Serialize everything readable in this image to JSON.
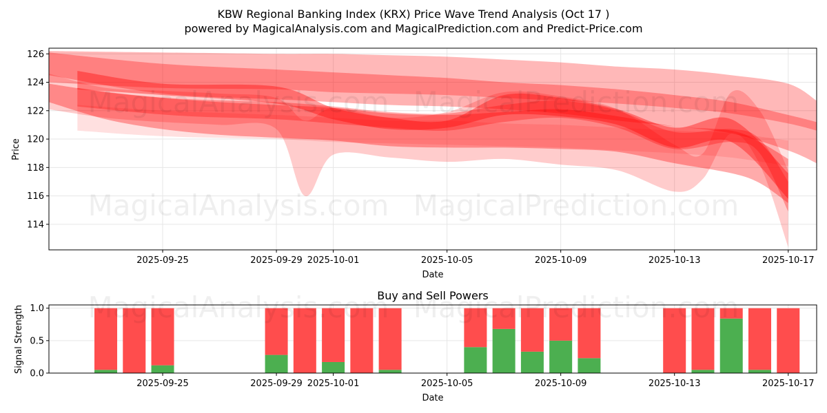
{
  "header": {
    "title": "KBW Regional Banking Index (KRX) Price Wave Trend Analysis (Oct 17 )",
    "subtitle": "powered by MagicalAnalysis.com and MagicalPrediction.com and Predict-Price.com"
  },
  "watermarks": [
    "MagicalAnalysis.com",
    "MagicalPrediction.com"
  ],
  "colors": {
    "wave": "#ff0000",
    "buy": "#4caf50",
    "sell": "#ff4d4d",
    "grid": "#e6e6e6"
  },
  "chart_data": [
    {
      "type": "area",
      "name": "price-wave-chart",
      "xlabel": "Date",
      "ylabel": "Price",
      "x_tick_labels": [
        "2025-09-25",
        "2025-09-29",
        "2025-10-01",
        "2025-10-05",
        "2025-10-09",
        "2025-10-13",
        "2025-10-17"
      ],
      "x_tick_dates": [
        "2025-09-25",
        "2025-09-29",
        "2025-10-01",
        "2025-10-05",
        "2025-10-09",
        "2025-10-13",
        "2025-10-17"
      ],
      "xlim": [
        "2025-09-21",
        "2025-10-18"
      ],
      "ylim": [
        112.2,
        126.4
      ],
      "y_ticks": [
        114,
        116,
        118,
        120,
        122,
        124,
        126
      ],
      "grid": true,
      "bands": [
        {
          "dates": [
            "2025-09-21",
            "2025-09-25",
            "2025-09-29",
            "2025-10-01",
            "2025-10-03",
            "2025-10-05",
            "2025-10-07",
            "2025-10-09",
            "2025-10-11",
            "2025-10-13",
            "2025-10-15",
            "2025-10-17",
            "2025-10-18"
          ],
          "upper": [
            126.2,
            126.1,
            126.0,
            126.0,
            125.9,
            125.8,
            125.6,
            125.4,
            125.1,
            124.9,
            124.5,
            123.9,
            122.7
          ],
          "lower": [
            124.0,
            123.6,
            123.5,
            123.3,
            123.2,
            123.1,
            122.9,
            122.7,
            122.5,
            122.2,
            121.8,
            121.1,
            120.6
          ],
          "opacity": 0.28
        },
        {
          "dates": [
            "2025-09-21",
            "2025-09-25",
            "2025-09-29",
            "2025-10-01",
            "2025-10-03",
            "2025-10-05",
            "2025-10-07",
            "2025-10-09",
            "2025-10-11",
            "2025-10-13",
            "2025-10-15",
            "2025-10-17",
            "2025-10-18"
          ],
          "upper": [
            126.1,
            125.3,
            124.9,
            124.7,
            124.5,
            124.3,
            124.0,
            123.8,
            123.5,
            123.1,
            122.6,
            121.7,
            121.2
          ],
          "lower": [
            124.5,
            123.2,
            122.8,
            122.6,
            122.4,
            122.3,
            122.1,
            121.8,
            121.3,
            120.9,
            120.4,
            119.2,
            118.3
          ],
          "opacity": 0.3
        },
        {
          "dates": [
            "2025-09-21",
            "2025-09-23",
            "2025-09-25",
            "2025-09-27",
            "2025-09-29",
            "2025-10-01",
            "2025-10-03",
            "2025-10-05",
            "2025-10-07",
            "2025-10-09",
            "2025-10-11",
            "2025-10-13",
            "2025-10-15",
            "2025-10-16",
            "2025-10-17"
          ],
          "upper": [
            123.9,
            123.3,
            122.9,
            122.6,
            122.4,
            122.2,
            121.8,
            121.7,
            121.9,
            122.1,
            121.6,
            120.9,
            120.6,
            119.8,
            118.6
          ],
          "lower": [
            122.6,
            121.4,
            120.7,
            120.3,
            120.1,
            119.9,
            119.5,
            119.4,
            119.4,
            119.3,
            119.1,
            118.3,
            117.6,
            116.9,
            115.5
          ],
          "opacity": 0.33
        },
        {
          "dates": [
            "2025-09-21",
            "2025-09-23",
            "2025-09-25",
            "2025-09-27",
            "2025-09-29",
            "2025-09-30",
            "2025-10-01",
            "2025-10-03",
            "2025-10-05",
            "2025-10-07",
            "2025-10-09",
            "2025-10-11",
            "2025-10-13",
            "2025-10-14",
            "2025-10-15",
            "2025-10-16",
            "2025-10-17"
          ],
          "upper": [
            124.6,
            123.6,
            123.4,
            123.2,
            122.9,
            121.3,
            122.2,
            121.5,
            121.9,
            123.3,
            123.0,
            122.1,
            119.6,
            119.0,
            123.3,
            122.0,
            117.8
          ],
          "lower": [
            122.1,
            121.5,
            121.2,
            121.0,
            120.7,
            116.0,
            118.9,
            118.7,
            118.4,
            118.6,
            118.2,
            117.8,
            116.3,
            117.2,
            120.4,
            118.2,
            112.4
          ],
          "opacity": 0.2
        },
        {
          "dates": [
            "2025-09-22",
            "2025-09-25",
            "2025-09-29",
            "2025-10-01",
            "2025-10-03",
            "2025-10-05",
            "2025-10-07",
            "2025-10-09",
            "2025-10-11",
            "2025-10-13",
            "2025-10-15",
            "2025-10-17"
          ],
          "upper": [
            124.8,
            123.9,
            123.7,
            122.2,
            121.5,
            121.3,
            123.1,
            122.9,
            122.1,
            120.8,
            121.4,
            117.6
          ],
          "lower": [
            123.5,
            123.1,
            122.5,
            121.4,
            120.7,
            120.8,
            121.7,
            121.6,
            121.0,
            119.4,
            119.8,
            115.8
          ],
          "opacity": 0.38
        },
        {
          "dates": [
            "2025-09-22",
            "2025-09-25",
            "2025-09-29",
            "2025-10-01",
            "2025-10-03",
            "2025-10-05",
            "2025-10-07",
            "2025-10-09",
            "2025-10-11",
            "2025-10-13",
            "2025-10-15",
            "2025-10-17"
          ],
          "upper": [
            122.4,
            122.0,
            121.7,
            121.5,
            121.3,
            121.3,
            121.1,
            121.0,
            120.8,
            120.6,
            120.4,
            119.9
          ],
          "lower": [
            120.6,
            120.2,
            120.0,
            119.8,
            119.7,
            119.6,
            119.5,
            119.4,
            119.2,
            119.0,
            118.7,
            118.1
          ],
          "opacity": 0.12
        },
        {
          "dates": [
            "2025-09-22",
            "2025-09-24",
            "2025-09-26",
            "2025-09-29",
            "2025-10-01",
            "2025-10-03",
            "2025-10-05",
            "2025-10-07",
            "2025-10-09",
            "2025-10-11",
            "2025-10-13",
            "2025-10-15",
            "2025-10-16",
            "2025-10-17"
          ],
          "upper": [
            123.6,
            123.1,
            122.8,
            122.6,
            122.3,
            121.9,
            121.8,
            122.4,
            122.7,
            122.0,
            120.5,
            120.7,
            120.0,
            117.0
          ],
          "lower": [
            122.3,
            121.9,
            121.6,
            121.4,
            121.1,
            120.8,
            120.6,
            121.2,
            121.5,
            120.8,
            119.3,
            119.8,
            119.0,
            114.9
          ],
          "opacity": 0.3
        }
      ]
    },
    {
      "type": "bar",
      "name": "buy-sell-chart",
      "title": "Buy and Sell Powers",
      "xlabel": "Date",
      "ylabel": "Signal Strength",
      "x_tick_labels": [
        "2025-09-25",
        "2025-09-29",
        "2025-10-01",
        "2025-10-05",
        "2025-10-09",
        "2025-10-13",
        "2025-10-17"
      ],
      "x_tick_dates": [
        "2025-09-25",
        "2025-09-29",
        "2025-10-01",
        "2025-10-05",
        "2025-10-09",
        "2025-10-13",
        "2025-10-17"
      ],
      "xlim": [
        "2025-09-21",
        "2025-10-18"
      ],
      "ylim": [
        0,
        1.05
      ],
      "y_ticks": [
        0.0,
        0.5,
        1.0
      ],
      "y_tick_labels": [
        "0.0",
        "0.5",
        "1.0"
      ],
      "grid": true,
      "categories": [
        "2025-09-23",
        "2025-09-24",
        "2025-09-25",
        "2025-09-29",
        "2025-09-30",
        "2025-10-01",
        "2025-10-02",
        "2025-10-03",
        "2025-10-06",
        "2025-10-07",
        "2025-10-08",
        "2025-10-09",
        "2025-10-10",
        "2025-10-13",
        "2025-10-14",
        "2025-10-15",
        "2025-10-16",
        "2025-10-17"
      ],
      "series": [
        {
          "name": "Buy",
          "values": [
            0.05,
            0.0,
            0.12,
            0.28,
            0.0,
            0.17,
            0.0,
            0.05,
            0.4,
            0.68,
            0.33,
            0.5,
            0.23,
            0.0,
            0.05,
            0.84,
            0.05,
            0.0
          ]
        },
        {
          "name": "Sell",
          "values": [
            0.95,
            1.0,
            0.88,
            0.72,
            1.0,
            0.83,
            1.0,
            0.95,
            0.6,
            0.32,
            0.67,
            0.5,
            0.77,
            1.0,
            0.95,
            0.16,
            0.95,
            1.0
          ]
        }
      ]
    }
  ]
}
